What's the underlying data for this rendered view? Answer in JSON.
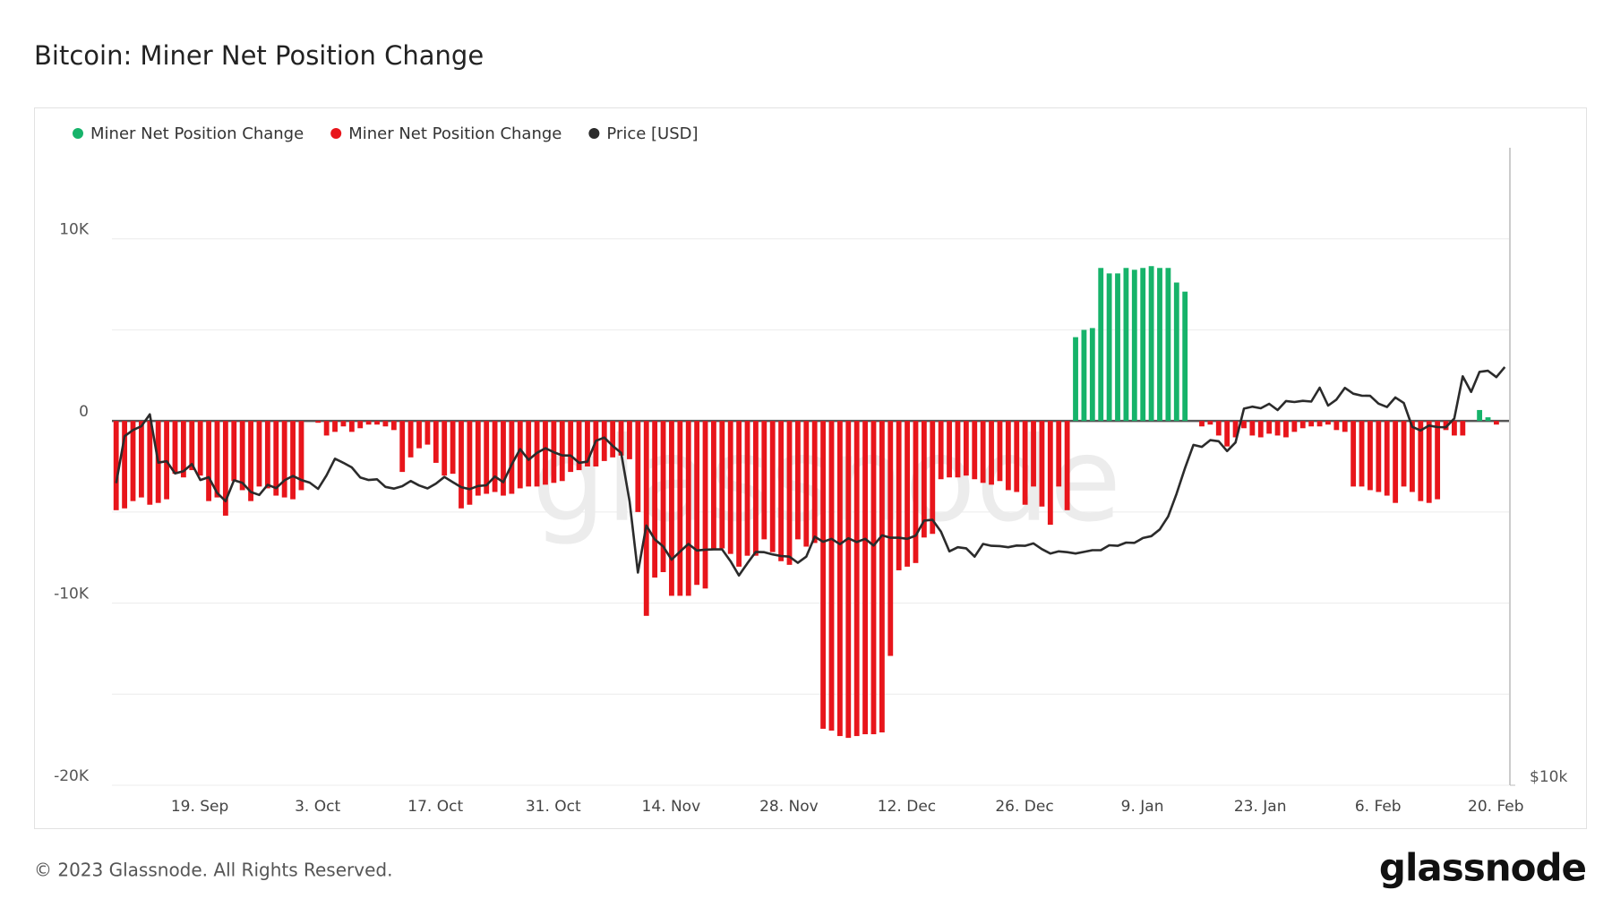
{
  "chart_data": {
    "type": "bar",
    "title": "Bitcoin: Miner Net Position Change",
    "watermark": "glassnode",
    "categories": [
      null,
      null,
      null,
      null,
      null,
      null,
      null,
      null,
      null,
      null,
      null,
      "19. Sep",
      null,
      null,
      null,
      null,
      null,
      null,
      null,
      null,
      null,
      null,
      null,
      null,
      null,
      "3. Oct",
      null,
      null,
      null,
      null,
      null,
      null,
      null,
      null,
      null,
      null,
      null,
      null,
      null,
      "17. Oct",
      null,
      null,
      null,
      null,
      null,
      null,
      null,
      null,
      null,
      null,
      null,
      null,
      null,
      "31. Oct",
      null,
      null,
      null,
      null,
      null,
      null,
      null,
      null,
      null,
      null,
      null,
      null,
      null,
      "14. Nov",
      null,
      null,
      null,
      null,
      null,
      null,
      null,
      null,
      null,
      null,
      null,
      null,
      null,
      "28. Nov",
      null,
      null,
      null,
      null,
      null,
      null,
      null,
      null,
      null,
      null,
      null,
      null,
      null,
      "12. Dec",
      null,
      null,
      null,
      null,
      null,
      null,
      null,
      null,
      null,
      null,
      null,
      null,
      null,
      "26. Dec",
      null,
      null,
      null,
      null,
      null,
      null,
      null,
      null,
      null,
      null,
      null,
      null,
      null,
      "9. Jan",
      null,
      null,
      null,
      null,
      null,
      null,
      null,
      null,
      null,
      null,
      null,
      null,
      null,
      "23. Jan",
      null,
      null,
      null,
      null,
      null,
      null,
      null,
      null,
      null,
      null,
      null,
      null,
      null,
      "6. Feb",
      null,
      null,
      null,
      null,
      null,
      null,
      null,
      null,
      null,
      null,
      null,
      null,
      null,
      "20. Feb"
    ],
    "series": [
      {
        "name": "Miner Net Position Change",
        "color": "#16b36a",
        "values": [
          null,
          null,
          null,
          null,
          null,
          null,
          null,
          null,
          null,
          null,
          null,
          null,
          null,
          null,
          null,
          null,
          null,
          null,
          null,
          null,
          null,
          null,
          null,
          null,
          null,
          null,
          null,
          null,
          null,
          null,
          null,
          null,
          null,
          null,
          null,
          null,
          null,
          null,
          null,
          null,
          null,
          null,
          null,
          null,
          null,
          null,
          null,
          null,
          null,
          null,
          null,
          null,
          null,
          null,
          null,
          null,
          null,
          null,
          null,
          null,
          null,
          null,
          null,
          null,
          null,
          null,
          null,
          null,
          null,
          null,
          null,
          null,
          null,
          null,
          null,
          null,
          null,
          null,
          null,
          null,
          null,
          null,
          null,
          null,
          null,
          null,
          null,
          null,
          null,
          null,
          null,
          null,
          null,
          null,
          null,
          null,
          null,
          null,
          null,
          null,
          null,
          null,
          null,
          null,
          null,
          null,
          null,
          null,
          null,
          null,
          null,
          null,
          null,
          null,
          4600,
          5000,
          5100,
          8400,
          8100,
          8100,
          8400,
          8300,
          8400,
          8500,
          8400,
          8400,
          7600,
          7100,
          null,
          null,
          null,
          null,
          null,
          null,
          null,
          null,
          null,
          null,
          null,
          null,
          null,
          null,
          null,
          null,
          null,
          null,
          null,
          null,
          null,
          null,
          null,
          null,
          null,
          null,
          null,
          null,
          null,
          null,
          null,
          null,
          null,
          null,
          600,
          200,
          null,
          null
        ]
      },
      {
        "name": "Miner Net Position Change",
        "color": "#e8151b",
        "values": [
          -4900,
          -4800,
          -4400,
          -4200,
          -4600,
          -4500,
          -4300,
          -2900,
          -3100,
          -2700,
          -3000,
          -4400,
          -4200,
          -5200,
          -3300,
          -3800,
          -4400,
          -3600,
          -3700,
          -4100,
          -4200,
          -4300,
          -3800,
          null,
          -100,
          -800,
          -600,
          -300,
          -600,
          -400,
          -200,
          -200,
          -300,
          -500,
          -2800,
          -2000,
          -1500,
          -1300,
          -2300,
          -3000,
          -2900,
          -4800,
          -4600,
          -4100,
          -4000,
          -3900,
          -4100,
          -4000,
          -3700,
          -3600,
          -3600,
          -3500,
          -3400,
          -3300,
          -2800,
          -2700,
          -2500,
          -2500,
          -2200,
          -2000,
          -1900,
          -2100,
          -5000,
          -10700,
          -8600,
          -8300,
          -9600,
          -9600,
          -9600,
          -9000,
          -9200,
          -7000,
          -7000,
          -7300,
          -8000,
          -7400,
          -7400,
          -6500,
          -7200,
          -7700,
          -7900,
          -6500,
          -6900,
          -6700,
          -16900,
          -17000,
          -17300,
          -17400,
          -17300,
          -17200,
          -17200,
          -17100,
          -12900,
          -8200,
          -8000,
          -7800,
          -6400,
          -6200,
          -3200,
          -3100,
          -3100,
          -3000,
          -3200,
          -3400,
          -3500,
          -3300,
          -3800,
          -3900,
          -4600,
          -3600,
          -4700,
          -5700,
          -3600,
          -4900,
          null,
          null,
          null,
          null,
          null,
          null,
          null,
          null,
          null,
          null,
          null,
          null,
          null,
          null,
          null,
          -300,
          -200,
          -800,
          -1400,
          -900,
          -400,
          -800,
          -900,
          -700,
          -800,
          -900,
          -600,
          -400,
          -300,
          -300,
          -200,
          -500,
          -600,
          -3600,
          -3600,
          -3800,
          -3900,
          -4100,
          -4500,
          -3600,
          -3900,
          -4400,
          -4500,
          -4300,
          -500,
          -800,
          -800,
          null,
          null,
          null,
          -200,
          null
        ]
      },
      {
        "name": "Price [USD]",
        "type": "line",
        "axis": "y2",
        "color": "#2b2b2b",
        "values": [
          19290,
          21360,
          21650,
          21830,
          22400,
          20170,
          20230,
          19700,
          19800,
          20110,
          19420,
          19540,
          18880,
          18550,
          19410,
          19300,
          18920,
          18800,
          19220,
          19080,
          19410,
          19590,
          19420,
          19310,
          19050,
          19620,
          20340,
          20160,
          19960,
          19530,
          19420,
          19450,
          19130,
          19060,
          19160,
          19380,
          19190,
          19070,
          19270,
          19550,
          19330,
          19120,
          19040,
          19170,
          19200,
          19570,
          19330,
          20090,
          20770,
          20290,
          20600,
          20810,
          20630,
          20490,
          20480,
          20160,
          20210,
          21150,
          21300,
          20910,
          20600,
          18540,
          15880,
          17590,
          17070,
          16810,
          16330,
          16620,
          16900,
          16660,
          16690,
          16700,
          16700,
          16280,
          15780,
          16200,
          16610,
          16600,
          16520,
          16460,
          16440,
          16220,
          16440,
          17170,
          16980,
          17090,
          16890,
          17110,
          16970,
          17090,
          16840,
          17220,
          17130,
          17130,
          17090,
          17210,
          17780,
          17810,
          17360,
          16630,
          16780,
          16740,
          16440,
          16900,
          16830,
          16820,
          16780,
          16840,
          16830,
          16920,
          16710,
          16550,
          16630,
          16600,
          16550,
          16610,
          16670,
          16670,
          16850,
          16830,
          16950,
          16940,
          17120,
          17190,
          17440,
          17940,
          18850,
          19930,
          20960,
          20870,
          21180,
          21130,
          20680,
          21070,
          22680,
          22780,
          22700,
          22920,
          22610,
          23060,
          23010,
          23070,
          23030,
          23740,
          22830,
          23130,
          23730,
          23430,
          23330,
          23320,
          22930,
          22760,
          23240,
          22960,
          21800,
          21630,
          21860,
          21790,
          21780,
          22200,
          24330,
          23520,
          24570,
          24630,
          24290,
          24830
        ]
      }
    ],
    "ylim": [
      -20000,
      15000
    ],
    "yticks": [
      {
        "value": -20000,
        "label": "-20K"
      },
      {
        "value": -10000,
        "label": "-10K"
      },
      0,
      {
        "value": 10000,
        "label": "10K"
      }
    ],
    "minor_yticks": [
      -15000,
      -5000,
      5000
    ],
    "y2lim": [
      10000,
      40000
    ],
    "y2ticks": [
      {
        "value": 10000,
        "label": "$10k"
      }
    ],
    "y2log": true,
    "grid": true,
    "legend": "top-left"
  },
  "footer": "© 2023 Glassnode. All Rights Reserved.",
  "logo": "glassnode"
}
